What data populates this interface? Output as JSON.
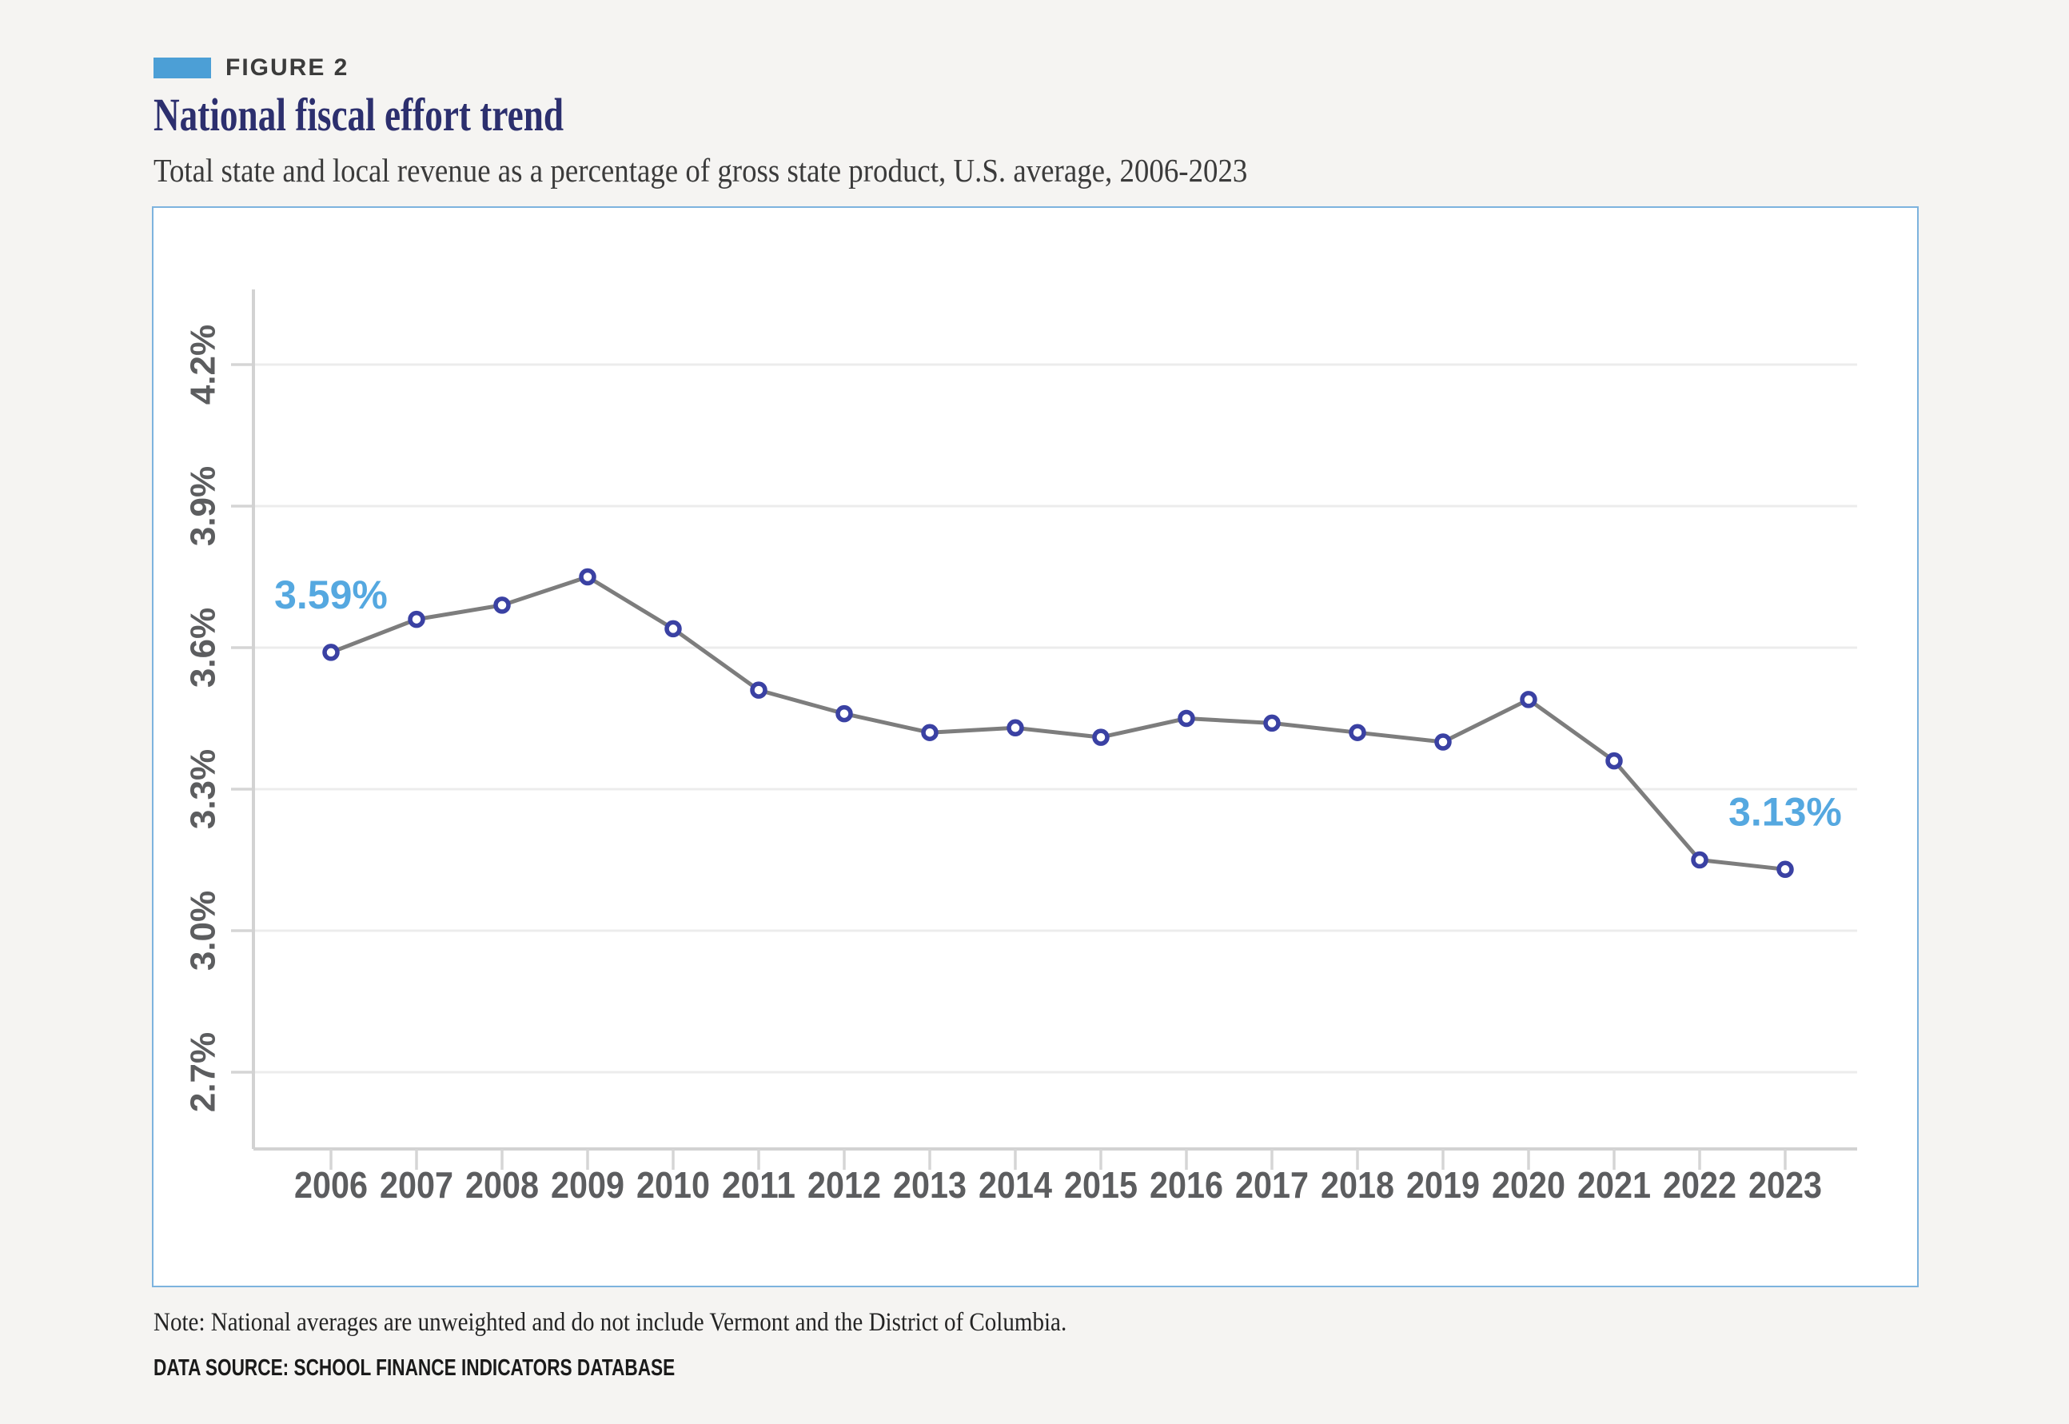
{
  "page": {
    "background": "#f5f4f2"
  },
  "header": {
    "figure_label": "FIGURE 2",
    "title": "National fiscal effort trend",
    "subtitle": "Total state and local revenue as a percentage of gross state product, U.S. average, 2006-2023"
  },
  "footer": {
    "note": "Note: National averages are unweighted and do not include Vermont and the District of Columbia.",
    "data_source": "DATA SOURCE: SCHOOL FINANCE INDICATORS DATABASE"
  },
  "colors": {
    "swatch_blue": "#4c9fd6",
    "annotation_blue": "#55a8e0",
    "title_navy": "#2c2f6e",
    "line_gray": "#7d7d7d",
    "marker_indigo": "#3a41a3",
    "marker_fill": "#ffffff",
    "gridline": "#ececec",
    "axis_line": "#d2d2d2",
    "tick": "#d5d5d5",
    "axis_label": "#5c5d5f",
    "card_border": "#7db3de",
    "card_background": "#ffffff"
  },
  "chart_data": {
    "type": "line",
    "title": "National fiscal effort trend",
    "subtitle": "Total state and local revenue as a percentage of gross state product, U.S. average, 2006-2023",
    "categories": [
      2006,
      2007,
      2008,
      2009,
      2010,
      2011,
      2012,
      2013,
      2014,
      2015,
      2016,
      2017,
      2018,
      2019,
      2020,
      2021,
      2022,
      2023
    ],
    "values": [
      3.59,
      3.66,
      3.69,
      3.75,
      3.64,
      3.51,
      3.46,
      3.42,
      3.43,
      3.41,
      3.45,
      3.44,
      3.42,
      3.4,
      3.49,
      3.36,
      3.15,
      3.13
    ],
    "yticks": [
      {
        "label": "4.2%",
        "value": 4.2
      },
      {
        "label": "3.9%",
        "value": 3.9
      },
      {
        "label": "3.6%",
        "value": 3.6
      },
      {
        "label": "3.3%",
        "value": 3.3
      },
      {
        "label": "3.0%",
        "value": 3.0
      },
      {
        "label": "2.7%",
        "value": 2.7
      }
    ],
    "ylim": [
      2.54,
      4.36
    ],
    "xlabel": "",
    "ylabel": "",
    "grid": "horizontal-only",
    "legend": "none",
    "marker": "open-circle",
    "annotations": [
      {
        "category": 2006,
        "label": "3.59%"
      },
      {
        "category": 2023,
        "label": "3.13%"
      }
    ]
  }
}
